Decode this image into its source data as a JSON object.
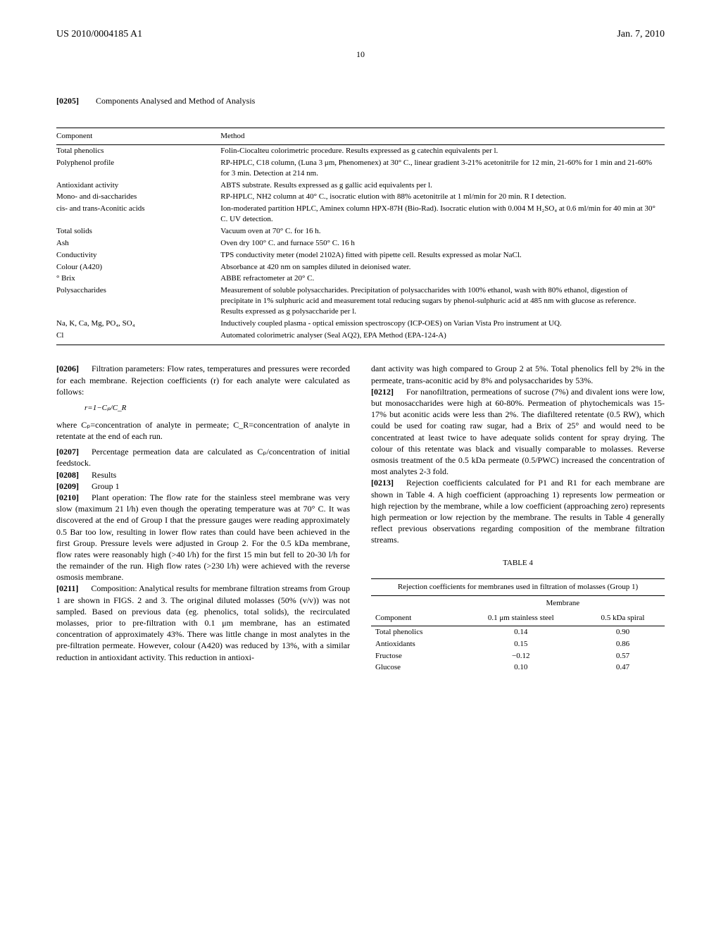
{
  "header": {
    "left": "US 2010/0004185 A1",
    "right": "Jan. 7, 2010"
  },
  "page_number": "10",
  "intro_para": {
    "num": "[0205]",
    "text": "Components Analysed and Method of Analysis"
  },
  "methods_table": {
    "columns": [
      "Component",
      "Method"
    ],
    "rows": [
      [
        "Total phenolics",
        "Folin-Ciocalteu colorimetric procedure. Results expressed as g catechin equivalents per l."
      ],
      [
        "Polyphenol profile",
        "RP-HPLC, C18 column, (Luna 3 μm, Phenomenex) at 30° C., linear gradient 3-21% acetonitrile for 12 min, 21-60% for 1 min and 21-60% for 3 min. Detection at 214 nm."
      ],
      [
        "Antioxidant activity",
        "ABTS substrate. Results expressed as g gallic acid equivalents per l."
      ],
      [
        "Mono- and di-saccharides",
        "RP-HPLC, NH2 column at 40° C., isocratic elution with 88% acetonitrile at 1 ml/min for 20 min. R I detection."
      ],
      [
        "cis- and trans-Aconitic acids",
        "Ion-moderated partition HPLC, Aminex column HPX-87H (Bio-Rad). Isocratic elution with 0.004 M H₂SO₄ at 0.6 ml/min for 40 min at 30° C. UV detection."
      ],
      [
        "Total solids",
        "Vacuum oven at 70° C. for 16 h."
      ],
      [
        "Ash",
        "Oven dry 100° C. and furnace 550° C. 16 h"
      ],
      [
        "Conductivity",
        "TPS conductivity meter (model 2102A) fitted with pipette cell. Results expressed as molar NaCl."
      ],
      [
        "Colour (A420)",
        "Absorbance at 420 nm on samples diluted in deionised water."
      ],
      [
        "° Brix",
        "ABBE refractometer at 20° C."
      ],
      [
        "Polysaccharides",
        "Measurement of soluble polysaccharides. Precipitation of polysaccharides with 100% ethanol, wash with 80% ethanol, digestion of precipitate in 1% sulphuric acid and measurement total reducing sugars by phenol-sulphuric acid at 485 nm with glucose as reference. Results expressed as g polysaccharide per l."
      ],
      [
        "Na, K, Ca, Mg, PO₄, SO₄",
        "Inductively coupled plasma - optical emission spectroscopy (ICP-OES) on Varian Vista Pro instrument at UQ."
      ],
      [
        "Cl",
        "Automated colorimetric analyser (Seal AQ2), EPA Method (EPA-124-A)"
      ]
    ]
  },
  "left_col": {
    "p0206": {
      "num": "[0206]",
      "text": "Filtration parameters: Flow rates, temperatures and pressures were recorded for each membrane. Rejection coefficients (r) for each analyte were calculated as follows:"
    },
    "formula": "r=1−Cₚ/C_R",
    "p0206b": "where Cₚ=concentration of analyte in permeate; C_R=concentration of analyte in retentate at the end of each run.",
    "p0207": {
      "num": "[0207]",
      "text": "Percentage permeation data are calculated as Cₚ/concentration of initial feedstock."
    },
    "p0208": {
      "num": "[0208]",
      "text": "Results"
    },
    "p0209": {
      "num": "[0209]",
      "text": "Group 1"
    },
    "p0210": {
      "num": "[0210]",
      "text": "Plant operation: The flow rate for the stainless steel membrane was very slow (maximum 21 l/h) even though the operating temperature was at 70° C. It was discovered at the end of Group I that the pressure gauges were reading approximately 0.5 Bar too low, resulting in lower flow rates than could have been achieved in the first Group. Pressure levels were adjusted in Group 2. For the 0.5 kDa membrane, flow rates were reasonably high (>40 l/h) for the first 15 min but fell to 20-30 l/h for the remainder of the run. High flow rates (>230 l/h) were achieved with the reverse osmosis membrane."
    },
    "p0211": {
      "num": "[0211]",
      "text": "Composition: Analytical results for membrane filtration streams from Group 1 are shown in FIGS. 2 and 3. The original diluted molasses (50% (v/v)) was not sampled. Based on previous data (eg. phenolics, total solids), the recirculated molasses, prior to pre-filtration with 0.1 μm membrane, has an estimated concentration of approximately 43%. There was little change in most analytes in the pre-filtration permeate. However, colour (A420) was reduced by 13%, with a similar reduction in antioxidant activity. This reduction in antioxi-"
    }
  },
  "right_col": {
    "p_cont": "dant activity was high compared to Group 2 at 5%. Total phenolics fell by 2% in the permeate, trans-aconitic acid by 8% and polysaccharides by 53%.",
    "p0212": {
      "num": "[0212]",
      "text": "For nanofiltration, permeations of sucrose (7%) and divalent ions were low, but monosaccharides were high at 60-80%. Permeation of phytochemicals was 15-17% but aconitic acids were less than 2%. The diafiltered retentate (0.5 RW), which could be used for coating raw sugar, had a Brix of 25° and would need to be concentrated at least twice to have adequate solids content for spray drying. The colour of this retentate was black and visually comparable to molasses. Reverse osmosis treatment of the 0.5 kDa permeate (0.5/PWC) increased the concentration of most analytes 2-3 fold."
    },
    "p0213": {
      "num": "[0213]",
      "text": "Rejection coefficients calculated for P1 and R1 for each membrane are shown in Table 4. A high coefficient (approaching 1) represents low permeation or high rejection by the membrane, while a low coefficient (approaching zero) represents high permeation or low rejection by the membrane. The results in Table 4 generally reflect previous observations regarding composition of the membrane filtration streams."
    },
    "table4": {
      "title": "TABLE 4",
      "caption": "Rejection coefficients for membranes used in filtration of molasses (Group 1)",
      "super_header": "Membrane",
      "columns": [
        "Component",
        "0.1 μm stainless steel",
        "0.5 kDa spiral"
      ],
      "rows": [
        [
          "Total phenolics",
          "0.14",
          "0.90"
        ],
        [
          "Antioxidants",
          "0.15",
          "0.86"
        ],
        [
          "Fructose",
          "−0.12",
          "0.57"
        ],
        [
          "Glucose",
          "0.10",
          "0.47"
        ]
      ]
    }
  }
}
